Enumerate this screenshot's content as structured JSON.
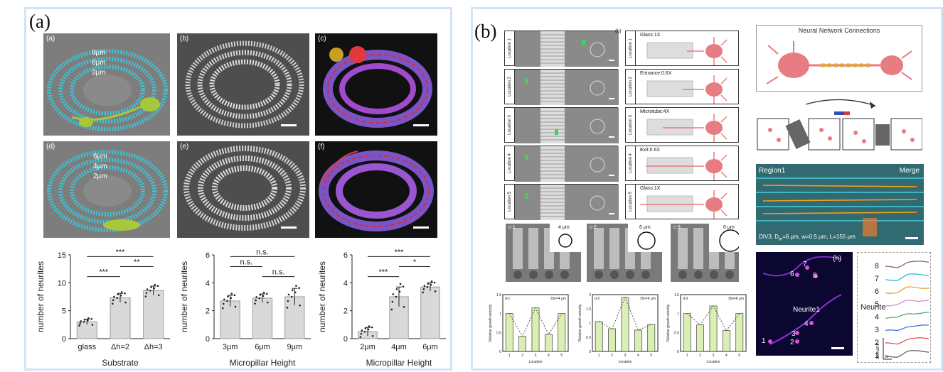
{
  "panel_a": {
    "label": "(a)",
    "images": {
      "a": {
        "label": "(a)",
        "heights": [
          "9μm",
          "6μm",
          "3μm"
        ]
      },
      "b": {
        "label": "(b)"
      },
      "c": {
        "label": "(c)"
      },
      "d": {
        "label": "(d)",
        "heights": [
          "6μm",
          "4μm",
          "2μm"
        ]
      },
      "e": {
        "label": "(e)"
      },
      "f": {
        "label": "(f)"
      }
    },
    "y_label": "number of neurites"
  },
  "panel_b": {
    "label": "(b)",
    "timelapse_label": "(b)",
    "locations": [
      {
        "label": "Location 1",
        "scheme_text": "Glass:1X"
      },
      {
        "label": "Location 2",
        "scheme_text": "Entrance:0.6X"
      },
      {
        "label": "Location 3",
        "scheme_text": "Microtube:4X"
      },
      {
        "label": "Location 4",
        "scheme_text": "Exit:0.6X"
      },
      {
        "label": "Location 5",
        "scheme_text": "Glass:1X"
      }
    ],
    "network_title": "Neural Network Connections",
    "sem": [
      {
        "label": "c-1",
        "diameter": "4 μm",
        "dlabel": "D<sub>in</sub>"
      },
      {
        "label": "c-2",
        "diameter": "6 μm"
      },
      {
        "label": "c-3",
        "diameter": "8 μm"
      }
    ],
    "fluor": {
      "region": "Region1",
      "merge": "Merge",
      "caption": "DIV3, D",
      "caption_sub": "in",
      "caption_rest": "=6 μm, w=0.5 μm, L=155 μm"
    },
    "calcium": {
      "label": "(h)",
      "neurite_label": "Neurite1",
      "cell_labels": [
        "1",
        "2",
        "3",
        "4",
        "6",
        "7",
        "8"
      ],
      "trace_title": "Neurite",
      "scale_y": "200%ΔF/F",
      "scale_x": "2s"
    }
  },
  "chart_data": [
    {
      "type": "bar",
      "title": "",
      "xlabel": "Substrate",
      "ylabel": "number of neurites",
      "categories": [
        "glass",
        "Δh=2",
        "Δh=3"
      ],
      "values": [
        3.0,
        7.3,
        8.6
      ],
      "errors": [
        0.5,
        0.8,
        0.8
      ],
      "ylim": [
        0,
        15
      ],
      "yticks": [
        0,
        5,
        10,
        15
      ],
      "significance": [
        {
          "from": 0,
          "to": 2,
          "text": "***"
        },
        {
          "from": 1,
          "to": 2,
          "text": "**"
        },
        {
          "from": 0,
          "to": 1,
          "text": "***"
        }
      ]
    },
    {
      "type": "bar",
      "title": "",
      "xlabel": "Micropillar Height",
      "ylabel": "number of neurites",
      "categories": [
        "3μm",
        "6μm",
        "9μm"
      ],
      "values": [
        2.7,
        2.9,
        3.0
      ],
      "errors": [
        0.4,
        0.3,
        0.6
      ],
      "ylim": [
        0,
        6
      ],
      "yticks": [
        0,
        2,
        4,
        6
      ],
      "significance": [
        {
          "from": 0,
          "to": 2,
          "text": "n.s."
        },
        {
          "from": 0,
          "to": 1,
          "text": "n.s."
        },
        {
          "from": 1,
          "to": 2,
          "text": "n.s."
        }
      ]
    },
    {
      "type": "bar",
      "title": "",
      "xlabel": "Micropillar Height",
      "ylabel": "number of neurites",
      "categories": [
        "2μm",
        "4μm",
        "6μm"
      ],
      "values": [
        0.5,
        3.0,
        3.7
      ],
      "errors": [
        0.3,
        0.7,
        0.3
      ],
      "ylim": [
        0,
        6
      ],
      "yticks": [
        0,
        2,
        4,
        6
      ],
      "significance": [
        {
          "from": 0,
          "to": 2,
          "text": "***"
        },
        {
          "from": 1,
          "to": 2,
          "text": "*"
        },
        {
          "from": 0,
          "to": 1,
          "text": "***"
        }
      ]
    },
    {
      "type": "bar",
      "title": "d-1",
      "legend": "Din=4 μm",
      "xlabel": "Location",
      "ylabel": "Relative growth velocity",
      "categories": [
        "1",
        "2",
        "3",
        "4",
        "5"
      ],
      "values": [
        1.0,
        0.4,
        1.15,
        0.45,
        1.0
      ],
      "ylim": [
        0,
        1.5
      ],
      "yticks": [
        0,
        0.5,
        1.0,
        1.5
      ]
    },
    {
      "type": "bar",
      "title": "d-2",
      "legend": "Din=6 μm",
      "xlabel": "Location",
      "ylabel": "Relative growth velocity",
      "categories": [
        "1",
        "2",
        "3",
        "4",
        "5"
      ],
      "values": [
        1.05,
        0.8,
        1.9,
        0.75,
        0.95
      ],
      "ylim": [
        0,
        2.0
      ],
      "yticks": [
        0,
        0.5,
        1.0,
        1.5,
        2.0
      ]
    },
    {
      "type": "bar",
      "title": "d-3",
      "legend": "Din=8 μm",
      "xlabel": "Location",
      "ylabel": "Relative growth velocity",
      "categories": [
        "1",
        "2",
        "3",
        "4",
        "5"
      ],
      "values": [
        1.0,
        0.7,
        1.2,
        0.55,
        1.0
      ],
      "ylim": [
        0,
        1.5
      ],
      "yticks": [
        0,
        0.5,
        1.0,
        1.5
      ]
    },
    {
      "type": "line",
      "title": "",
      "xlabel": "",
      "ylabel": "",
      "series": [
        {
          "name": "8",
          "color": "#8c5a4a"
        },
        {
          "name": "7",
          "color": "#19b6c8"
        },
        {
          "name": "6",
          "color": "#e29a1c"
        },
        {
          "name": "5",
          "color": "#c987d4"
        },
        {
          "name": "4",
          "color": "#36a85a"
        },
        {
          "name": "3",
          "color": "#2e6fd0"
        },
        {
          "name": "2",
          "color": "#e0483a"
        },
        {
          "name": "1",
          "color": "#555555"
        }
      ]
    }
  ]
}
